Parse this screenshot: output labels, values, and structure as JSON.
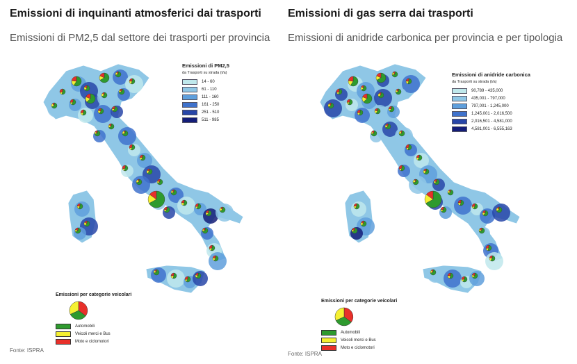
{
  "left": {
    "title": "Emissioni di inquinanti atmosferici dai trasporti",
    "subtitle": "Emissioni di PM2,5 dal settore dei trasporti per provincia",
    "legend": {
      "title": "Emissioni di PM2,5",
      "subtitle": "da Trasporti su strada (t/a)",
      "classes": [
        {
          "label": "14 - 60",
          "color": "#bfe8ec"
        },
        {
          "label": "61 - 110",
          "color": "#8fc7e6"
        },
        {
          "label": "111 - 160",
          "color": "#5f9fdc"
        },
        {
          "label": "161 - 250",
          "color": "#3f72cc"
        },
        {
          "label": "251 - 510",
          "color": "#2846a8"
        },
        {
          "label": "511 - 985",
          "color": "#141d78"
        }
      ]
    },
    "category_legend": {
      "title": "Emissioni per categorie veicolari",
      "items": [
        {
          "label": "Automobili",
          "color": "#2e9a2e"
        },
        {
          "label": "Veicoli merci e Bus",
          "color": "#f5f032"
        },
        {
          "label": "Moto e ciclomotori",
          "color": "#e8302a"
        }
      ]
    },
    "source": "Fonte: ISPRA"
  },
  "right": {
    "title": "Emissioni di gas serra dai trasporti",
    "subtitle": "Emissioni di anidride carbonica per provincia e per tipologia",
    "legend": {
      "title": "Emissioni di anidride carbonica",
      "subtitle": "da Trasporti su strada (t/a)",
      "classes": [
        {
          "label": "90,789 - 435,000",
          "color": "#bfe8ec"
        },
        {
          "label": "435,001 - 797,000",
          "color": "#8fc7e6"
        },
        {
          "label": "797,001 - 1,245,000",
          "color": "#5f9fdc"
        },
        {
          "label": "1,245,001 - 2,016,500",
          "color": "#3f72cc"
        },
        {
          "label": "2,016,501 - 4,581,000",
          "color": "#2846a8"
        },
        {
          "label": "4,581,001 - 6,555,163",
          "color": "#141d78"
        }
      ]
    },
    "category_legend": {
      "title": "Emissioni per categorie veicolari",
      "items": [
        {
          "label": "Automobili",
          "color": "#2e9a2e"
        },
        {
          "label": "Veicoli merci e Bus",
          "color": "#f5f032"
        },
        {
          "label": "Moto e ciclomotori",
          "color": "#e8302a"
        }
      ]
    },
    "source": "Fonte: ISPRA"
  }
}
